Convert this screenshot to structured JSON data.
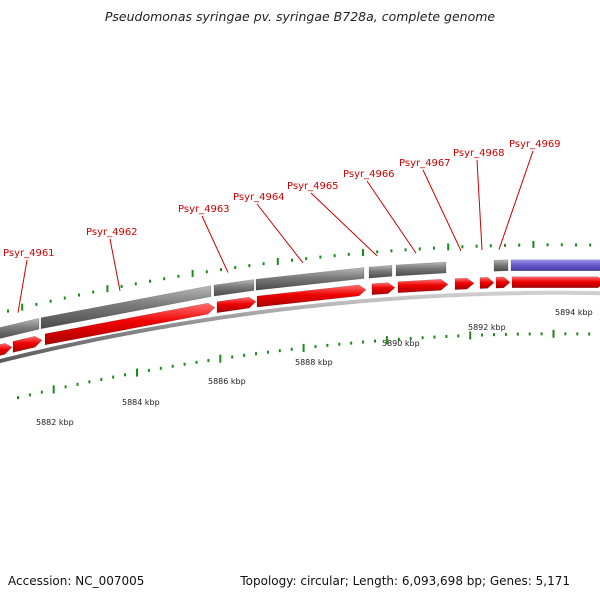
{
  "title": "Pseudomonas syringae pv. syringae B728a, complete genome",
  "accession_text": "Accession: NC_007005",
  "summary_text": "Topology: circular; Length: 6,093,698 bp; Genes: 5,171",
  "colors": {
    "forward_cds": "#ee0000",
    "gene": "#777777",
    "repeat_region": "#6a5ccc",
    "backbone": "#9a9a9a",
    "tick": "#1a8a1a",
    "label": "#cc0000"
  },
  "gene_labels": [
    "Psyr_4961",
    "Psyr_4962",
    "Psyr_4963",
    "Psyr_4964",
    "Psyr_4965",
    "Psyr_4966",
    "Psyr_4967",
    "Psyr_4968",
    "Psyr_4969"
  ],
  "axis": {
    "tick_labels": [
      "5882 kbp",
      "5884 kbp",
      "5886 kbp",
      "5888 kbp",
      "5890 kbp",
      "5892 kbp",
      "5894 kbp"
    ]
  }
}
